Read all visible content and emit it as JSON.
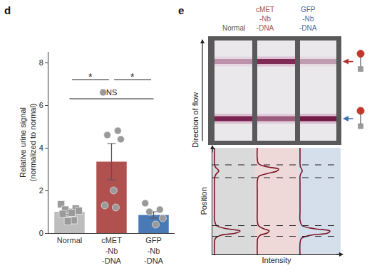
{
  "chart_data": [
    {
      "type": "bar",
      "title": "d",
      "categories": [
        "Normal",
        "cMET\n-Nb\n-DNA",
        "GFP\n-Nb\n-DNA"
      ],
      "values": [
        1.0,
        3.35,
        0.85
      ],
      "colors": [
        "#bdbdbd",
        "#b0504f",
        "#4a7ab5"
      ],
      "error": [
        0.12,
        0.85,
        0.15
      ],
      "points": [
        {
          "marker": "square",
          "color": "#9a9a9a",
          "values": [
            1.35,
            1.15,
            1.1,
            1.05,
            0.95,
            0.9,
            0.6,
            0.55
          ]
        },
        {
          "marker": "circle",
          "color": "#9a9a9a",
          "values": [
            6.6,
            4.8,
            4.6,
            4.4,
            2.0,
            1.3,
            1.2
          ]
        },
        {
          "marker": "circle",
          "color": "#9a9a9a",
          "values": [
            1.4,
            1.1,
            1.0,
            0.7,
            0.4
          ]
        }
      ],
      "y_label": "Relative urine signal\n(normalized to normal)",
      "ylim": [
        0,
        8.5
      ],
      "yticks": [
        0,
        2,
        4,
        6,
        8
      ],
      "comparisons": [
        {
          "from": 0,
          "to": 1,
          "y": 7.2,
          "label": "*"
        },
        {
          "from": 1,
          "to": 2,
          "y": 7.2,
          "label": "*"
        },
        {
          "from": 0,
          "to": 2,
          "y": 6.3,
          "label": "NS"
        }
      ]
    },
    {
      "type": "line",
      "title": "e",
      "x_label": "Intensity",
      "y_label": "Position",
      "flow_label": "Direction of flow",
      "xlim": [
        0,
        1
      ],
      "ylim": [
        0,
        1
      ],
      "tick_labels": false,
      "y": [
        0,
        0.1,
        0.15,
        0.18,
        0.2,
        0.22,
        0.24,
        0.27,
        0.32,
        0.4,
        0.5,
        0.6,
        0.68,
        0.73,
        0.76,
        0.78,
        0.8,
        0.82,
        0.85,
        0.9,
        1.0
      ],
      "band_positions": [
        0.79,
        0.22
      ],
      "band_windows": [
        [
          0.72,
          0.84
        ],
        [
          0.17,
          0.27
        ]
      ],
      "series": [
        {
          "name": "Normal",
          "color": "#555555",
          "bands": [
            0.35,
            0.9
          ],
          "values": [
            0.05,
            0.05,
            0.07,
            0.2,
            0.55,
            0.65,
            0.35,
            0.1,
            0.05,
            0.05,
            0.05,
            0.05,
            0.05,
            0.06,
            0.1,
            0.15,
            0.12,
            0.07,
            0.05,
            0.05,
            0.05
          ]
        },
        {
          "name": "cMET\n-Nb\n-DNA",
          "color": "#b0504f",
          "bands": [
            0.85,
            0.6
          ],
          "values": [
            0.05,
            0.05,
            0.06,
            0.12,
            0.28,
            0.33,
            0.2,
            0.08,
            0.05,
            0.05,
            0.05,
            0.05,
            0.05,
            0.08,
            0.3,
            0.5,
            0.55,
            0.3,
            0.08,
            0.05,
            0.05
          ]
        },
        {
          "name": "GFP\n-Nb\n-DNA",
          "color": "#3f6fa8",
          "bands": [
            0.3,
            0.95
          ],
          "values": [
            0.05,
            0.05,
            0.08,
            0.3,
            0.7,
            0.75,
            0.4,
            0.1,
            0.05,
            0.05,
            0.05,
            0.05,
            0.05,
            0.05,
            0.07,
            0.1,
            0.09,
            0.06,
            0.05,
            0.05,
            0.05
          ]
        }
      ]
    }
  ]
}
